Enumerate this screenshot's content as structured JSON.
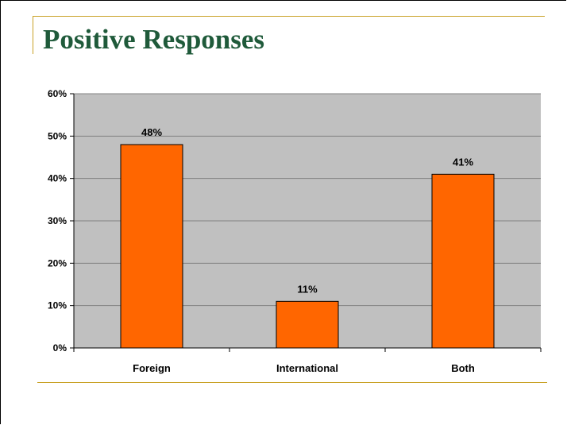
{
  "slide": {
    "title": "Positive Responses",
    "accent_color": "#c9a227",
    "title_color": "#1f5a3a"
  },
  "chart_data": {
    "type": "bar",
    "categories": [
      "Foreign",
      "International",
      "Both"
    ],
    "values": [
      48,
      11,
      41
    ],
    "value_labels": [
      "48%",
      "11%",
      "41%"
    ],
    "y_tick_labels": [
      "0%",
      "10%",
      "20%",
      "30%",
      "40%",
      "50%",
      "60%"
    ],
    "ylim": [
      0,
      60
    ],
    "y_tick_step": 10,
    "grid": true,
    "legend": false,
    "bar_color": "#ff6600",
    "plot_background": "#c0c0c0"
  }
}
